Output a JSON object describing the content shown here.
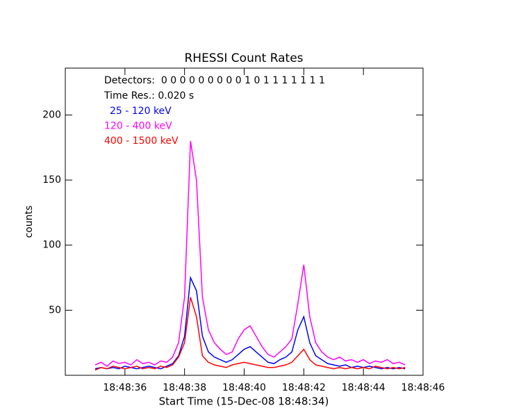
{
  "chart_data": {
    "type": "line",
    "title": "RHESSI Count Rates",
    "x_label": "Start Time (15-Dec-08 18:48:34)",
    "y_label": "counts",
    "annotations": [
      "Detectors:  0 0 0 0 0 0 0 0 0 1 0 1 1 1 1 1 1 1",
      "Time Res.: 0.020 s"
    ],
    "x": [
      35.0,
      35.2,
      35.4,
      35.6,
      35.8,
      36.0,
      36.2,
      36.4,
      36.6,
      36.8,
      37.0,
      37.2,
      37.4,
      37.6,
      37.8,
      38.0,
      38.2,
      38.4,
      38.6,
      38.8,
      39.0,
      39.2,
      39.4,
      39.6,
      39.8,
      40.0,
      40.2,
      40.4,
      40.6,
      40.8,
      41.0,
      41.2,
      41.4,
      41.6,
      41.8,
      42.0,
      42.2,
      42.4,
      42.6,
      42.8,
      43.0,
      43.2,
      43.4,
      43.6,
      43.8,
      44.0,
      44.2,
      44.4,
      44.6,
      44.8,
      45.0,
      45.2,
      45.4
    ],
    "series": [
      {
        "name": "25 - 120 keV",
        "color": "#0000ff",
        "values": [
          5,
          6,
          5,
          6,
          5,
          7,
          6,
          5,
          6,
          7,
          6,
          5,
          7,
          9,
          15,
          30,
          75,
          65,
          30,
          18,
          14,
          12,
          10,
          12,
          16,
          20,
          22,
          18,
          14,
          10,
          9,
          12,
          14,
          18,
          35,
          45,
          25,
          15,
          12,
          9,
          8,
          7,
          8,
          6,
          7,
          6,
          7,
          6,
          5,
          6,
          5,
          6,
          5
        ]
      },
      {
        "name": "120 - 400 keV",
        "color": "#ff00ff",
        "values": [
          8,
          10,
          7,
          11,
          9,
          10,
          8,
          12,
          9,
          10,
          8,
          11,
          10,
          14,
          25,
          60,
          180,
          150,
          60,
          35,
          25,
          20,
          16,
          18,
          28,
          35,
          38,
          30,
          22,
          16,
          14,
          18,
          22,
          28,
          55,
          85,
          45,
          25,
          18,
          14,
          12,
          14,
          11,
          12,
          10,
          12,
          9,
          11,
          10,
          12,
          9,
          10,
          8
        ]
      },
      {
        "name": "400 - 1500 keV",
        "color": "#ff0000",
        "values": [
          4,
          6,
          5,
          7,
          6,
          5,
          6,
          7,
          5,
          6,
          5,
          7,
          6,
          8,
          14,
          25,
          60,
          45,
          15,
          10,
          8,
          7,
          6,
          8,
          9,
          10,
          9,
          8,
          7,
          6,
          6,
          7,
          8,
          10,
          15,
          20,
          12,
          8,
          7,
          6,
          5,
          6,
          5,
          6,
          5,
          6,
          5,
          7,
          6,
          5,
          6,
          5,
          6
        ]
      }
    ],
    "draw_order": [
      1,
      0,
      2
    ],
    "xlim": [
      34,
      46
    ],
    "ylim": [
      0,
      236
    ],
    "xticks": [
      {
        "value": 36,
        "label": "18:48:36"
      },
      {
        "value": 38,
        "label": "18:48:38"
      },
      {
        "value": 40,
        "label": "18:48:40"
      },
      {
        "value": 42,
        "label": "18:48:42"
      },
      {
        "value": 44,
        "label": "18:48:44"
      },
      {
        "value": 46,
        "label": "18:48:46"
      }
    ],
    "yticks": [
      50,
      100,
      150,
      200
    ]
  }
}
